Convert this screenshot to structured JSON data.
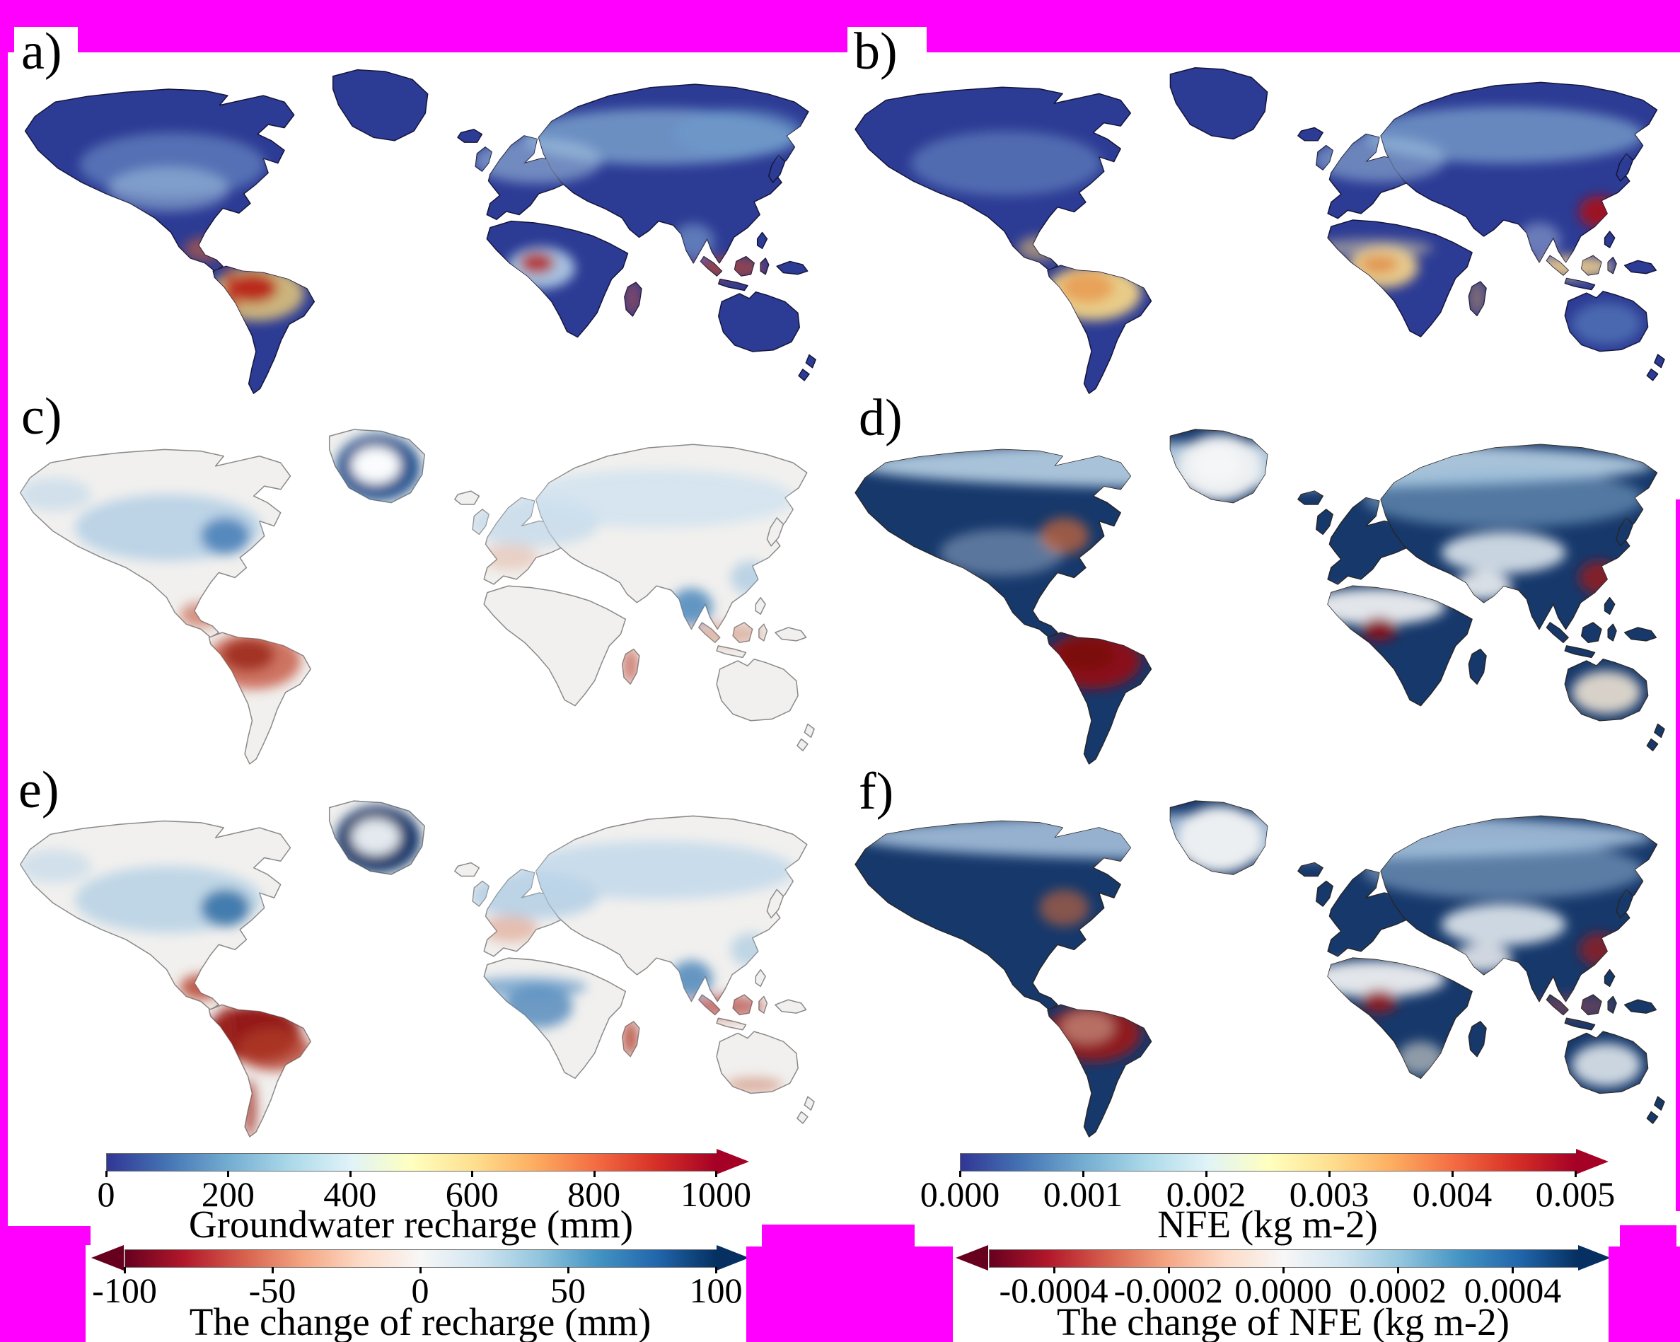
{
  "figure": {
    "background": "#ffffff",
    "frame_color": "#ff00ff",
    "text_color": "#000000"
  },
  "panels": [
    {
      "id": "a",
      "label": "a)",
      "variable": "Groundwater recharge (mm)",
      "base": "#2c3b94",
      "stroke": "#14143a",
      "overlays": [
        {
          "region": "siberia",
          "color": "#8fbcdc",
          "opacity": 0.65
        },
        {
          "region": "siberia-east",
          "color": "#6f9fd0",
          "opacity": 0.5
        },
        {
          "region": "canada",
          "color": "#7fa6d4",
          "opacity": 0.5
        },
        {
          "region": "us-plains",
          "color": "#a9cbe4",
          "opacity": 0.5
        },
        {
          "region": "europe-n",
          "color": "#a9cbe4",
          "opacity": 0.55
        },
        {
          "region": "congo",
          "color": "#bcd8ec",
          "opacity": 0.85
        },
        {
          "region": "india",
          "color": "#8fb8dc",
          "opacity": 0.5
        },
        {
          "region": "amazon",
          "color": "#e8c97a",
          "opacity": 0.85
        },
        {
          "region": "amazon-core",
          "color": "#b71c14",
          "opacity": 0.9
        },
        {
          "region": "andes",
          "color": "#c0392b",
          "opacity": 0.75
        },
        {
          "region": "central-america",
          "color": "#d06030",
          "opacity": 0.6
        },
        {
          "region": "congo-core",
          "color": "#b71c14",
          "opacity": 0.8
        },
        {
          "region": "se-asia",
          "color": "#c44a28",
          "opacity": 0.65
        },
        {
          "region": "madagascar",
          "color": "#c05040",
          "opacity": 0.6
        }
      ]
    },
    {
      "id": "b",
      "label": "b)",
      "variable": "NFE (kg m-2)",
      "base": "#2c3b94",
      "stroke": "#14143a",
      "overlays": [
        {
          "region": "siberia",
          "color": "#8fbcdc",
          "opacity": 0.6
        },
        {
          "region": "canada",
          "color": "#7fa6d4",
          "opacity": 0.45
        },
        {
          "region": "europe-n",
          "color": "#a9cbe4",
          "opacity": 0.5
        },
        {
          "region": "amazon",
          "color": "#f2d488",
          "opacity": 0.95
        },
        {
          "region": "amazon-core",
          "color": "#e89a50",
          "opacity": 0.85
        },
        {
          "region": "congo",
          "color": "#f0d08a",
          "opacity": 0.95
        },
        {
          "region": "congo-core",
          "color": "#e08840",
          "opacity": 0.8
        },
        {
          "region": "sahel",
          "color": "#ead9a8",
          "opacity": 0.5
        },
        {
          "region": "se-asia",
          "color": "#eecd8c",
          "opacity": 0.9
        },
        {
          "region": "india",
          "color": "#c8ddf0",
          "opacity": 0.4
        },
        {
          "region": "china-east",
          "color": "#a81016",
          "opacity": 0.9
        },
        {
          "region": "australia-c",
          "color": "#6f9fd0",
          "opacity": 0.45
        },
        {
          "region": "madagascar",
          "color": "#e0a050",
          "opacity": 0.5
        },
        {
          "region": "central-america",
          "color": "#e8c070",
          "opacity": 0.6
        }
      ]
    },
    {
      "id": "c",
      "label": "c)",
      "variable": "The change of recharge (mm)",
      "base": "#f1f0ee",
      "stroke": "#8a8a8a",
      "overlays": [
        {
          "region": "canada",
          "color": "#a5c8e2",
          "opacity": 0.7
        },
        {
          "region": "hudson",
          "color": "#3572b0",
          "opacity": 0.75
        },
        {
          "region": "alaska",
          "color": "#bcd6ea",
          "opacity": 0.6
        },
        {
          "region": "greenland",
          "color": "#1d4f8c",
          "opacity": 0.95
        },
        {
          "region": "greenland-core",
          "color": "#fafcfd",
          "opacity": 1
        },
        {
          "region": "europe-n",
          "color": "#bcd6ea",
          "opacity": 0.65
        },
        {
          "region": "siberia",
          "color": "#cadff0",
          "opacity": 0.7
        },
        {
          "region": "amazon",
          "color": "#c4543e",
          "opacity": 0.8
        },
        {
          "region": "amazon-core",
          "color": "#992515",
          "opacity": 0.8
        },
        {
          "region": "central-america",
          "color": "#c4604a",
          "opacity": 0.65
        },
        {
          "region": "india",
          "color": "#4080b8",
          "opacity": 0.8
        },
        {
          "region": "china-east",
          "color": "#90bcdc",
          "opacity": 0.55
        },
        {
          "region": "se-asia",
          "color": "#c87a5e",
          "opacity": 0.45
        },
        {
          "region": "madagascar",
          "color": "#c05040",
          "opacity": 0.7
        },
        {
          "region": "europe-s",
          "color": "#dca088",
          "opacity": 0.4
        }
      ]
    },
    {
      "id": "d",
      "label": "d)",
      "variable": "The change of NFE (kg m-2)",
      "base": "#16386b",
      "stroke": "#26262a",
      "overlays": [
        {
          "region": "arctic-band",
          "color": "#c2daec",
          "opacity": 0.85
        },
        {
          "region": "greenland",
          "color": "#eceff1",
          "opacity": 1
        },
        {
          "region": "greenland-core",
          "color": "#f4f6f7",
          "opacity": 1
        },
        {
          "region": "sahara",
          "color": "#e8ebee",
          "opacity": 0.97
        },
        {
          "region": "arabia",
          "color": "#e4e8ec",
          "opacity": 0.95
        },
        {
          "region": "central-asia",
          "color": "#dce5ec",
          "opacity": 0.9
        },
        {
          "region": "siberia",
          "color": "#8fb8d8",
          "opacity": 0.5
        },
        {
          "region": "amazon",
          "color": "#8f0e14",
          "opacity": 0.95
        },
        {
          "region": "amazon-core",
          "color": "#7a0a10",
          "opacity": 0.95
        },
        {
          "region": "congo-core",
          "color": "#8f0e14",
          "opacity": 0.9
        },
        {
          "region": "china-east",
          "color": "#9c1a1a",
          "opacity": 0.8
        },
        {
          "region": "australia-c",
          "color": "#ece2d4",
          "opacity": 0.9
        },
        {
          "region": "us-plains",
          "color": "#c2d4e6",
          "opacity": 0.4
        },
        {
          "region": "hudson",
          "color": "#d06838",
          "opacity": 0.7
        }
      ]
    },
    {
      "id": "e",
      "label": "e)",
      "variable": "The change of recharge (mm)",
      "base": "#f1f0ee",
      "stroke": "#8a8a8a",
      "overlays": [
        {
          "region": "greenland",
          "color": "#16386b",
          "opacity": 1
        },
        {
          "region": "greenland-core",
          "color": "#eef2f6",
          "opacity": 0.95
        },
        {
          "region": "canada",
          "color": "#a5c8e2",
          "opacity": 0.65
        },
        {
          "region": "hudson",
          "color": "#2e6da4",
          "opacity": 0.85
        },
        {
          "region": "alaska",
          "color": "#bcd6ea",
          "opacity": 0.6
        },
        {
          "region": "europe-n",
          "color": "#a5c8e2",
          "opacity": 0.7
        },
        {
          "region": "siberia",
          "color": "#bcd6ea",
          "opacity": 0.75
        },
        {
          "region": "amazon",
          "color": "#8f1012",
          "opacity": 0.95
        },
        {
          "region": "amazon-east",
          "color": "#b03a28",
          "opacity": 0.8
        },
        {
          "region": "andes",
          "color": "#a02a1e",
          "opacity": 0.7
        },
        {
          "region": "central-america",
          "color": "#b5432f",
          "opacity": 0.85
        },
        {
          "region": "chile",
          "color": "#a02a1e",
          "opacity": 0.8
        },
        {
          "region": "congo",
          "color": "#4d86ba",
          "opacity": 0.8
        },
        {
          "region": "sahel",
          "color": "#5b93c4",
          "opacity": 0.7
        },
        {
          "region": "india",
          "color": "#4d86ba",
          "opacity": 0.85
        },
        {
          "region": "se-asia",
          "color": "#a82a1c",
          "opacity": 0.6
        },
        {
          "region": "madagascar",
          "color": "#b03a28",
          "opacity": 0.8
        },
        {
          "region": "australia-s",
          "color": "#c97a5e",
          "opacity": 0.55
        },
        {
          "region": "europe-s",
          "color": "#d98d72",
          "opacity": 0.5
        },
        {
          "region": "china-east",
          "color": "#90bcdc",
          "opacity": 0.5
        }
      ]
    },
    {
      "id": "f",
      "label": "f)",
      "variable": "The change of NFE (kg m-2)",
      "base": "#16386b",
      "stroke": "#26262a",
      "overlays": [
        {
          "region": "arctic-band",
          "color": "#b5d0e8",
          "opacity": 0.8
        },
        {
          "region": "greenland",
          "color": "#eceff1",
          "opacity": 1
        },
        {
          "region": "sahara",
          "color": "#e8ebee",
          "opacity": 0.97
        },
        {
          "region": "arabia",
          "color": "#e4e8ec",
          "opacity": 0.9
        },
        {
          "region": "central-asia",
          "color": "#dce5ec",
          "opacity": 0.92
        },
        {
          "region": "china-east",
          "color": "#9c1a1a",
          "opacity": 0.75
        },
        {
          "region": "amazon",
          "color": "#9c1418",
          "opacity": 0.9
        },
        {
          "region": "amazon-core",
          "color": "#e0c8a8",
          "opacity": 0.5
        },
        {
          "region": "congo-core",
          "color": "#9c1418",
          "opacity": 0.85
        },
        {
          "region": "australia-c",
          "color": "#dfe7ec",
          "opacity": 0.9
        },
        {
          "region": "s-africa",
          "color": "#e0ddd2",
          "opacity": 0.6
        },
        {
          "region": "hudson",
          "color": "#d06838",
          "opacity": 0.6
        },
        {
          "region": "siberia",
          "color": "#9fc2de",
          "opacity": 0.5
        },
        {
          "region": "se-asia",
          "color": "#c0504a",
          "opacity": 0.4
        }
      ]
    }
  ],
  "colorbars": [
    {
      "id": "groundwater-recharge",
      "label": "Groundwater recharge (mm)",
      "ticks": [
        "0",
        "200",
        "400",
        "600",
        "800",
        "1000"
      ],
      "arrows": "right",
      "gradient": [
        "#313695",
        "#4575b4",
        "#74add1",
        "#abd9e9",
        "#e0f3f8",
        "#ffffbf",
        "#fee090",
        "#fdae61",
        "#f46d43",
        "#d73027",
        "#a50026"
      ]
    },
    {
      "id": "recharge-change",
      "label": "The change of recharge (mm)",
      "ticks": [
        "-100",
        "-50",
        "0",
        "50",
        "100"
      ],
      "arrows": "both",
      "gradient": [
        "#67001f",
        "#b2182b",
        "#d6604d",
        "#f4a582",
        "#fddbc7",
        "#f7f7f7",
        "#d1e5f0",
        "#92c5de",
        "#4393c3",
        "#2166ac",
        "#053061"
      ]
    },
    {
      "id": "nfe",
      "label": "NFE (kg m-2)",
      "ticks": [
        "0.000",
        "0.001",
        "0.002",
        "0.003",
        "0.004",
        "0.005"
      ],
      "arrows": "right",
      "gradient": [
        "#313695",
        "#4575b4",
        "#74add1",
        "#abd9e9",
        "#e0f3f8",
        "#ffffbf",
        "#fee090",
        "#fdae61",
        "#f46d43",
        "#d73027",
        "#a50026"
      ]
    },
    {
      "id": "nfe-change",
      "label": "The change of NFE (kg m-2)",
      "ticks": [
        "-0.0004",
        "-0.0002",
        "0.0000",
        "0.0002",
        "0.0004"
      ],
      "arrows": "both",
      "gradient": [
        "#67001f",
        "#b2182b",
        "#d6604d",
        "#f4a582",
        "#fddbc7",
        "#f7f7f7",
        "#d1e5f0",
        "#92c5de",
        "#4393c3",
        "#2166ac",
        "#053061"
      ]
    }
  ],
  "chart_data": [
    {
      "type": "heatmap",
      "panel": "a",
      "title": "Groundwater recharge (mm)",
      "range": [
        0,
        1000
      ],
      "tick_values": [
        0,
        200,
        400,
        600,
        800,
        1000
      ],
      "colormap": "blue-yellow-red",
      "legend_position": "bottom-left",
      "description": "Global map, mostly dark blue with red-orange hotspots in Amazonia, central Africa and Southeast Asia"
    },
    {
      "type": "heatmap",
      "panel": "b",
      "title": "NFE (kg m-2)",
      "range": [
        0,
        0.005
      ],
      "tick_values": [
        0.0,
        0.001,
        0.002,
        0.003,
        0.004,
        0.005
      ],
      "colormap": "blue-yellow-red",
      "legend_position": "bottom-right",
      "description": "Global map, dark blue with yellow Amazon and central Africa, red eastern China"
    },
    {
      "type": "heatmap",
      "panel": "c",
      "title": "The change of recharge (mm)",
      "range": [
        -100,
        100
      ],
      "tick_values": [
        -100,
        -50,
        0,
        50,
        100
      ],
      "colormap": "red-white-blue",
      "legend_position": "bottom-left",
      "description": "Pale global map with blue high latitudes and red Amazon"
    },
    {
      "type": "heatmap",
      "panel": "d",
      "title": "The change of NFE (kg m-2)",
      "range": [
        -0.0004,
        0.0004
      ],
      "tick_values": [
        -0.0004,
        -0.0002,
        0.0,
        0.0002,
        0.0004
      ],
      "colormap": "red-white-blue",
      "legend_position": "bottom-right",
      "description": "Deep blue continents, dark red Amazon and Congo, pale deserts"
    },
    {
      "type": "heatmap",
      "panel": "e",
      "title": "The change of recharge (mm)",
      "range": [
        -100,
        100
      ],
      "tick_values": [
        -100,
        -50,
        0,
        50,
        100
      ],
      "colormap": "red-white-blue",
      "legend_position": "bottom-left",
      "description": "Pale map with strong dark-red Amazon, blue Sahel, India and Siberia, navy Greenland"
    },
    {
      "type": "heatmap",
      "panel": "f",
      "title": "The change of NFE (kg m-2)",
      "range": [
        -0.0004,
        0.0004
      ],
      "tick_values": [
        -0.0004,
        -0.0002,
        0.0,
        0.0002,
        0.0004
      ],
      "colormap": "red-white-blue",
      "legend_position": "bottom-right",
      "description": "Deep blue continents with scattered red hotspots in Amazonia, Congo and China"
    }
  ]
}
